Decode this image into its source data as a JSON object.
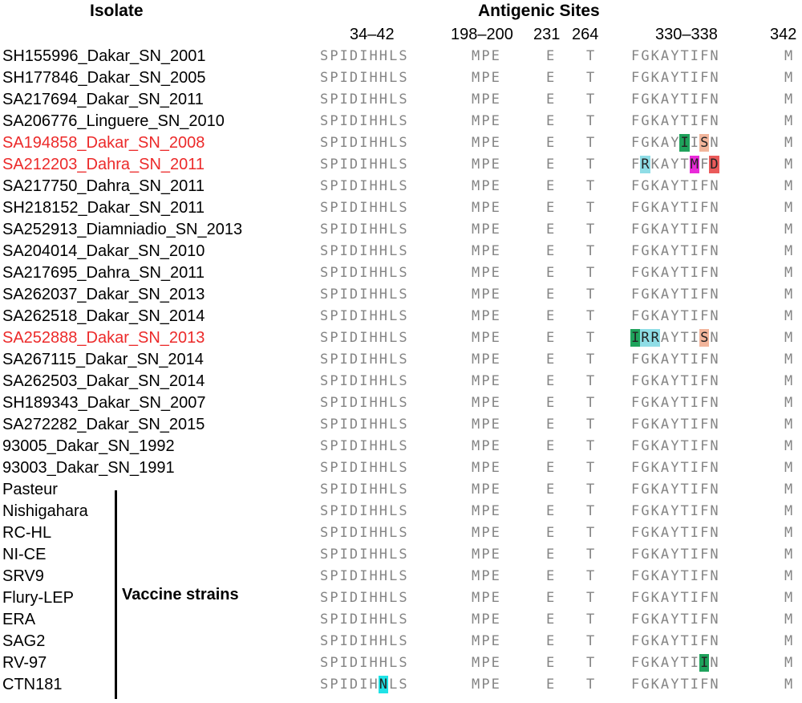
{
  "headers": {
    "isolate": "Isolate",
    "antigenic_sites": "Antigenic Sites"
  },
  "sites": [
    {
      "label": "34–42"
    },
    {
      "label": "198–200"
    },
    {
      "label": "231"
    },
    {
      "label": "264"
    },
    {
      "label": "330–338"
    },
    {
      "label": "342"
    }
  ],
  "vaccine_group_label": "Vaccine strains",
  "colors": {
    "highlighted_isolate": "#ec2a2a",
    "residue": "#858585",
    "green": "#1fa35c",
    "salmon": "#f2b59b",
    "cyan_light": "#8fdde6",
    "magenta": "#e92ad9",
    "red": "#ea5a5a",
    "cyan": "#1fe2e6"
  },
  "rows": [
    {
      "name": "SH155996_Dakar_SN_2001",
      "red": false,
      "seqs": [
        "SPIDIHHLS",
        "MPE",
        "E",
        "T",
        "FGKAYTIFN",
        "M"
      ],
      "hl": []
    },
    {
      "name": "SH177846_Dakar_SN_2005",
      "red": false,
      "seqs": [
        "SPIDIHHLS",
        "MPE",
        "E",
        "T",
        "FGKAYTIFN",
        "M"
      ],
      "hl": []
    },
    {
      "name": "SA217694_Dakar_SN_2011",
      "red": false,
      "seqs": [
        "SPIDIHHLS",
        "MPE",
        "E",
        "T",
        "FGKAYTIFN",
        "M"
      ],
      "hl": []
    },
    {
      "name": "SA206776_Linguere_SN_2010",
      "red": false,
      "seqs": [
        "SPIDIHHLS",
        "MPE",
        "E",
        "T",
        "FGKAYTIFN",
        "M"
      ],
      "hl": []
    },
    {
      "name": "SA194858_Dakar_SN_2008",
      "red": true,
      "seqs": [
        "SPIDIHHLS",
        "MPE",
        "E",
        "T",
        "FGKAYIISN",
        "M"
      ],
      "hl": [
        [
          4,
          5,
          "green"
        ],
        [
          4,
          7,
          "salmon"
        ]
      ]
    },
    {
      "name": "SA212203_Dahra_SN_2011",
      "red": true,
      "seqs": [
        "SPIDIHHLS",
        "MPE",
        "E",
        "T",
        "FRKAYTMFD",
        "M"
      ],
      "hl": [
        [
          4,
          1,
          "cyan_light"
        ],
        [
          4,
          6,
          "magenta"
        ],
        [
          4,
          8,
          "red"
        ]
      ]
    },
    {
      "name": "SA217750_Dahra_SN_2011",
      "red": false,
      "seqs": [
        "SPIDIHHLS",
        "MPE",
        "E",
        "T",
        "FGKAYTIFN",
        "M"
      ],
      "hl": []
    },
    {
      "name": "SH218152_Dakar_SN_2011",
      "red": false,
      "seqs": [
        "SPIDIHHLS",
        "MPE",
        "E",
        "T",
        "FGKAYTIFN",
        "M"
      ],
      "hl": []
    },
    {
      "name": "SA252913_Diamniadio_SN_2013",
      "red": false,
      "seqs": [
        "SPIDIHHLS",
        "MPE",
        "E",
        "T",
        "FGKAYTIFN",
        "M"
      ],
      "hl": []
    },
    {
      "name": "SA204014_Dakar_SN_2010",
      "red": false,
      "seqs": [
        "SPIDIHHLS",
        "MPE",
        "E",
        "T",
        "FGKAYTIFN",
        "M"
      ],
      "hl": []
    },
    {
      "name": "SA217695_Dahra_SN_2011",
      "red": false,
      "seqs": [
        "SPIDIHHLS",
        "MPE",
        "E",
        "T",
        "FGKAYTIFN",
        "M"
      ],
      "hl": []
    },
    {
      "name": "SA262037_Dakar_SN_2013",
      "red": false,
      "seqs": [
        "SPIDIHHLS",
        "MPE",
        "E",
        "T",
        "FGKAYTIFN",
        "M"
      ],
      "hl": []
    },
    {
      "name": "SA262518_Dakar_SN_2014",
      "red": false,
      "seqs": [
        "SPIDIHHLS",
        "MPE",
        "E",
        "T",
        "FGKAYTIFN",
        "M"
      ],
      "hl": []
    },
    {
      "name": "SA252888_Dakar_SN_2013",
      "red": true,
      "seqs": [
        "SPIDIHHLS",
        "MPE",
        "E",
        "T",
        "IRRAYTISN",
        "M"
      ],
      "hl": [
        [
          4,
          0,
          "green"
        ],
        [
          4,
          1,
          "cyan_light"
        ],
        [
          4,
          2,
          "cyan_light"
        ],
        [
          4,
          7,
          "salmon"
        ]
      ]
    },
    {
      "name": "SA267115_Dakar_SN_2014",
      "red": false,
      "seqs": [
        "SPIDIHHLS",
        "MPE",
        "E",
        "T",
        "FGKAYTIFN",
        "M"
      ],
      "hl": []
    },
    {
      "name": "SA262503_Dakar_SN_2014",
      "red": false,
      "seqs": [
        "SPIDIHHLS",
        "MPE",
        "E",
        "T",
        "FGKAYTIFN",
        "M"
      ],
      "hl": []
    },
    {
      "name": "SH189343_Dakar_SN_2007",
      "red": false,
      "seqs": [
        "SPIDIHHLS",
        "MPE",
        "E",
        "T",
        "FGKAYTIFN",
        "M"
      ],
      "hl": []
    },
    {
      "name": "SA272282_Dakar_SN_2015",
      "red": false,
      "seqs": [
        "SPIDIHHLS",
        "MPE",
        "E",
        "T",
        "FGKAYTIFN",
        "M"
      ],
      "hl": []
    },
    {
      "name": "93005_Dakar_SN_1992",
      "red": false,
      "seqs": [
        "SPIDIHHLS",
        "MPE",
        "E",
        "T",
        "FGKAYTIFN",
        "M"
      ],
      "hl": []
    },
    {
      "name": "93003_Dakar_SN_1991",
      "red": false,
      "seqs": [
        "SPIDIHHLS",
        "MPE",
        "E",
        "T",
        "FGKAYTIFN",
        "M"
      ],
      "hl": []
    },
    {
      "name": "Pasteur",
      "red": false,
      "seqs": [
        "SPIDIHHLS",
        "MPE",
        "E",
        "T",
        "FGKAYTIFN",
        "M"
      ],
      "hl": []
    },
    {
      "name": "Nishigahara",
      "red": false,
      "seqs": [
        "SPIDIHHLS",
        "MPE",
        "E",
        "T",
        "FGKAYTIFN",
        "M"
      ],
      "hl": []
    },
    {
      "name": "RC-HL",
      "red": false,
      "seqs": [
        "SPIDIHHLS",
        "MPE",
        "E",
        "T",
        "FGKAYTIFN",
        "M"
      ],
      "hl": []
    },
    {
      "name": "NI-CE",
      "red": false,
      "seqs": [
        "SPIDIHHLS",
        "MPE",
        "E",
        "T",
        "FGKAYTIFN",
        "M"
      ],
      "hl": []
    },
    {
      "name": "SRV9",
      "red": false,
      "seqs": [
        "SPIDIHHLS",
        "MPE",
        "E",
        "T",
        "FGKAYTIFN",
        "M"
      ],
      "hl": []
    },
    {
      "name": "Flury-LEP",
      "red": false,
      "seqs": [
        "SPIDIHHLS",
        "MPE",
        "E",
        "T",
        "FGKAYTIFN",
        "M"
      ],
      "hl": []
    },
    {
      "name": "ERA",
      "red": false,
      "seqs": [
        "SPIDIHHLS",
        "MPE",
        "E",
        "T",
        "FGKAYTIFN",
        "M"
      ],
      "hl": []
    },
    {
      "name": "SAG2",
      "red": false,
      "seqs": [
        "SPIDIHHLS",
        "MPE",
        "E",
        "T",
        "FGKAYTIFN",
        "M"
      ],
      "hl": []
    },
    {
      "name": "RV-97",
      "red": false,
      "seqs": [
        "SPIDIHHLS",
        "MPE",
        "E",
        "T",
        "FGKAYTIIN",
        "M"
      ],
      "hl": [
        [
          4,
          7,
          "green"
        ]
      ]
    },
    {
      "name": "CTN181",
      "red": false,
      "seqs": [
        "SPIDIHNLS",
        "MPE",
        "E",
        "T",
        "FGKAYTIFN",
        "M"
      ],
      "hl": [
        [
          0,
          6,
          "cyan"
        ]
      ]
    }
  ]
}
